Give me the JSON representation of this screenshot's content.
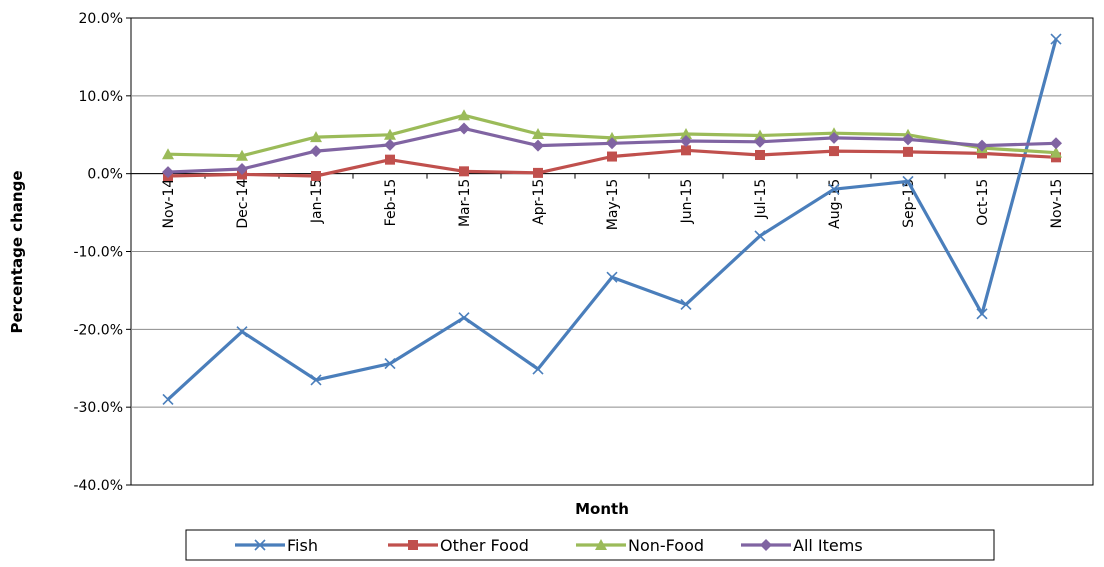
{
  "chart_data": {
    "type": "line",
    "title": "",
    "xlabel": "Month",
    "ylabel": "Percentage change",
    "ylim": [
      -40,
      20
    ],
    "ytick_step": 10,
    "ytick_labels": [
      "20.0%",
      "10.0%",
      "0.0%",
      "-10.0%",
      "-20.0%",
      "-30.0%",
      "-40.0%"
    ],
    "grid": "horizontal",
    "legend": "bottom",
    "categories": [
      "Nov-14",
      "Dec-14",
      "Jan-15",
      "Feb-15",
      "Mar-15",
      "Apr-15",
      "May-15",
      "Jun-15",
      "Jul-15",
      "Aug-15",
      "Sep-15",
      "Oct-15",
      "Nov-15"
    ],
    "series": [
      {
        "name": "Fish",
        "color": "#4a7ebb",
        "marker": "x",
        "values": [
          -29.0,
          -20.3,
          -26.5,
          -24.4,
          -18.5,
          -25.1,
          -13.3,
          -16.8,
          -8.0,
          -2.0,
          -1.0,
          -18.0,
          17.3
        ]
      },
      {
        "name": "Other Food",
        "color": "#c0504d",
        "marker": "square",
        "values": [
          -0.3,
          -0.1,
          -0.3,
          1.8,
          0.3,
          0.1,
          2.2,
          3.0,
          2.4,
          2.9,
          2.8,
          2.6,
          2.1
        ]
      },
      {
        "name": "Non-Food",
        "color": "#9bbb59",
        "marker": "triangle",
        "values": [
          2.5,
          2.3,
          4.7,
          5.0,
          7.5,
          5.1,
          4.6,
          5.1,
          4.9,
          5.2,
          5.0,
          3.3,
          2.7
        ]
      },
      {
        "name": "All Items",
        "color": "#8064a2",
        "marker": "diamond",
        "values": [
          0.2,
          0.6,
          2.9,
          3.7,
          5.8,
          3.6,
          3.9,
          4.2,
          4.1,
          4.6,
          4.4,
          3.6,
          3.9
        ]
      }
    ]
  }
}
